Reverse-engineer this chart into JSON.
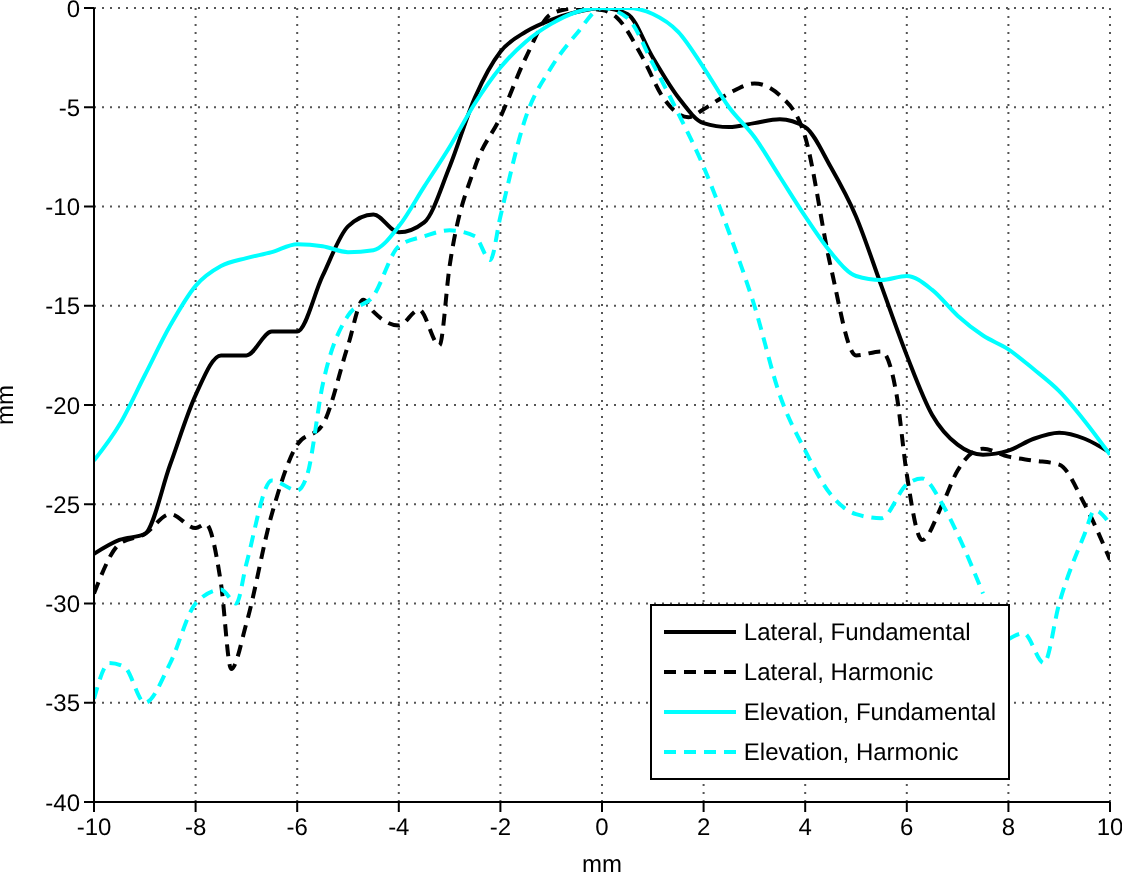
{
  "chart_data": {
    "type": "line",
    "xlabel": "mm",
    "ylabel": "mm",
    "xlim": [
      -10,
      10
    ],
    "ylim": [
      -40,
      0
    ],
    "xticks": [
      -10,
      -8,
      -6,
      -4,
      -2,
      0,
      2,
      4,
      6,
      8,
      10
    ],
    "yticks": [
      -40,
      -35,
      -30,
      -25,
      -20,
      -15,
      -10,
      -5,
      0
    ],
    "grid": true,
    "legend": "bottom right",
    "marker": "none",
    "series": [
      {
        "name": "Lateral, Fundamental",
        "color": "#000000",
        "line_style": "solid",
        "x": [
          -10,
          -9.5,
          -9,
          -8.5,
          -8,
          -7.5,
          -7,
          -6.5,
          -6,
          -5.5,
          -5,
          -4.5,
          -4,
          -3.5,
          -3,
          -2.5,
          -2,
          -1.5,
          -1,
          -0.5,
          0,
          0.5,
          1,
          1.5,
          2,
          2.5,
          3,
          3.5,
          4,
          4.5,
          5,
          5.5,
          6,
          6.5,
          7,
          7.5,
          8,
          8.5,
          9,
          9.5,
          10
        ],
        "values": [
          -27.5,
          -26.8,
          -26.5,
          -23,
          -19.5,
          -17.5,
          -17.5,
          -16.3,
          -16.3,
          -13.5,
          -11,
          -10.4,
          -11.3,
          -10.8,
          -8,
          -4.5,
          -2.2,
          -1.2,
          -0.6,
          -0.2,
          0,
          -0.3,
          -2.5,
          -4.5,
          -5.8,
          -6,
          -5.8,
          -5.6,
          -6,
          -8,
          -10.5,
          -14,
          -17.5,
          -20.5,
          -22,
          -22.5,
          -22.3,
          -21.7,
          -21.4,
          -21.7,
          -22.4
        ]
      },
      {
        "name": "Lateral, Harmonic",
        "color": "#000000",
        "line_style": "dashed",
        "x": [
          -10,
          -9.5,
          -9,
          -8.5,
          -8,
          -7.8,
          -7.5,
          -7.3,
          -7,
          -6.5,
          -6,
          -5.5,
          -5,
          -4.7,
          -4.5,
          -4,
          -3.6,
          -3.2,
          -3,
          -2.5,
          -2,
          -1.5,
          -1,
          -0.5,
          0,
          0.3,
          0.8,
          1.2,
          1.7,
          2,
          2.5,
          3,
          3.5,
          4,
          4.5,
          5,
          5.5,
          5.8,
          6,
          6.3,
          6.7,
          7,
          7.5,
          8,
          8.5,
          9,
          9.5,
          10
        ],
        "values": [
          -29.5,
          -27,
          -26.5,
          -25.5,
          -26.2,
          -26,
          -29,
          -33.3,
          -31,
          -25.5,
          -22,
          -21,
          -17,
          -14.7,
          -15.3,
          -16,
          -15.2,
          -17,
          -13,
          -8,
          -5.5,
          -2.5,
          -0.3,
          0,
          -0.1,
          -0.5,
          -2.5,
          -4.5,
          -5.5,
          -5.1,
          -4.3,
          -3.8,
          -4.4,
          -6.5,
          -13,
          -17.5,
          -17.3,
          -19.5,
          -23.5,
          -26.8,
          -25,
          -23.3,
          -22.2,
          -22.6,
          -22.8,
          -23,
          -25,
          -27.8
        ]
      },
      {
        "name": "Elevation, Fundamental",
        "color": "#00ffff",
        "line_style": "solid",
        "x": [
          -10,
          -9.5,
          -9,
          -8.5,
          -8,
          -7.5,
          -7,
          -6.5,
          -6,
          -5.5,
          -5,
          -4.5,
          -4,
          -3.5,
          -3,
          -2.5,
          -2,
          -1.5,
          -1,
          -0.5,
          0,
          0.5,
          1,
          1.5,
          2,
          2.5,
          3,
          3.5,
          4,
          4.5,
          5,
          5.5,
          6,
          6.5,
          7,
          7.5,
          8,
          8.5,
          9,
          9.5,
          10
        ],
        "values": [
          -22.8,
          -21,
          -18.5,
          -16,
          -14,
          -13,
          -12.6,
          -12.3,
          -11.9,
          -12,
          -12.3,
          -12.2,
          -11,
          -9,
          -7,
          -4.8,
          -3,
          -1.7,
          -0.8,
          -0.2,
          0,
          0,
          -0.3,
          -1.2,
          -3,
          -5,
          -6.5,
          -8.5,
          -10.5,
          -12.3,
          -13.5,
          -13.7,
          -13.5,
          -14.2,
          -15.5,
          -16.5,
          -17.2,
          -18.2,
          -19.3,
          -20.8,
          -22.5
        ]
      },
      {
        "name": "Elevation, Harmonic",
        "color": "#00ffff",
        "line_style": "dashed",
        "x": [
          -10,
          -9.7,
          -9.4,
          -9,
          -8.5,
          -8,
          -7.5,
          -7.2,
          -7,
          -6.5,
          -6,
          -5.8,
          -5.5,
          -5,
          -4.5,
          -4,
          -3.5,
          -3,
          -2.5,
          -2.2,
          -2,
          -1.5,
          -1,
          -0.5,
          0,
          0.5,
          1,
          1.5,
          2,
          2.5,
          3,
          3.5,
          4,
          4.5,
          5,
          5.5,
          6,
          6.3,
          6.7,
          7,
          7.5,
          7.7,
          8,
          8.3,
          8.7,
          9,
          9.5,
          9.7,
          10
        ],
        "values": [
          -34.8,
          -33,
          -33.2,
          -35,
          -33,
          -30,
          -29.3,
          -30,
          -28,
          -23.8,
          -24.3,
          -23.5,
          -19,
          -15.5,
          -14.5,
          -12,
          -11.5,
          -11.2,
          -11.5,
          -12.7,
          -10.5,
          -5.5,
          -3,
          -1.3,
          0,
          -0.5,
          -2.8,
          -5.3,
          -8,
          -11.3,
          -15,
          -19.5,
          -22.3,
          -24.5,
          -25.5,
          -25.7,
          -24,
          -23.7,
          -25,
          -26.5,
          -29.5,
          null,
          -31.8,
          -31.5,
          -33,
          -30,
          -26.5,
          -25.3,
          -26
        ]
      }
    ]
  }
}
